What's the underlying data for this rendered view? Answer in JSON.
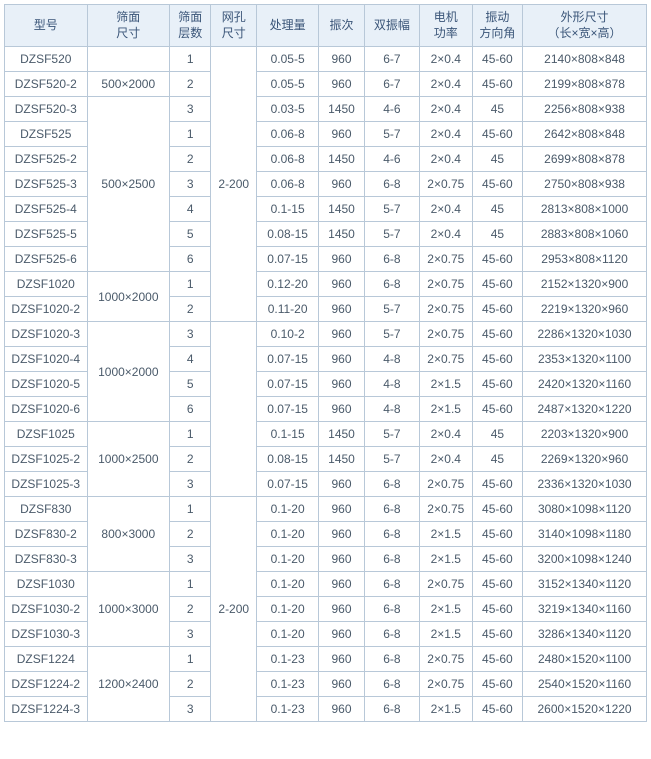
{
  "headers": [
    "型号",
    "筛面\n尺寸",
    "筛面\n层数",
    "网孔\n尺寸",
    "处理量",
    "振次",
    "双振幅",
    "电机\n功率",
    "振动\n方向角",
    "外形尺寸\n（长×宽×高）"
  ],
  "colClasses": [
    "c0",
    "c1",
    "c2",
    "c3",
    "c4",
    "c5",
    "c6",
    "c7",
    "c8",
    "c9"
  ],
  "rows": [
    {
      "c0": "DZSF520",
      "c1": null,
      "c2": "1",
      "c3": null,
      "c4": "0.05-5",
      "c5": "960",
      "c6": "6-7",
      "c7": "2×0.4",
      "c8": "45-60",
      "c9": "2140×808×848"
    },
    {
      "c0": "DZSF520-2",
      "c1": "500×2000",
      "c2": "2",
      "c3": null,
      "c4": "0.05-5",
      "c5": "960",
      "c6": "6-7",
      "c7": "2×0.4",
      "c8": "45-60",
      "c9": "2199×808×878"
    },
    {
      "c0": "DZSF520-3",
      "c1": null,
      "c2": "3",
      "c3": null,
      "c4": "0.03-5",
      "c5": "1450",
      "c6": "4-6",
      "c7": "2×0.4",
      "c8": "45",
      "c9": "2256×808×938"
    },
    {
      "c0": "DZSF525",
      "c1": null,
      "c2": "1",
      "c3": null,
      "c4": "0.06-8",
      "c5": "960",
      "c6": "5-7",
      "c7": "2×0.4",
      "c8": "45-60",
      "c9": "2642×808×848"
    },
    {
      "c0": "DZSF525-2",
      "c1": null,
      "c2": "2",
      "c3": null,
      "c4": "0.06-8",
      "c5": "1450",
      "c6": "4-6",
      "c7": "2×0.4",
      "c8": "45",
      "c9": "2699×808×878"
    },
    {
      "c0": "DZSF525-3",
      "c1": "500×2500",
      "c2": "3",
      "c3": "2-200",
      "c4": "0.06-8",
      "c5": "960",
      "c6": "6-8",
      "c7": "2×0.75",
      "c8": "45-60",
      "c9": "2750×808×938"
    },
    {
      "c0": "DZSF525-4",
      "c1": null,
      "c2": "4",
      "c3": null,
      "c4": "0.1-15",
      "c5": "1450",
      "c6": "5-7",
      "c7": "2×0.4",
      "c8": "45",
      "c9": "2813×808×1000"
    },
    {
      "c0": "DZSF525-5",
      "c1": null,
      "c2": "5",
      "c3": null,
      "c4": "0.08-15",
      "c5": "1450",
      "c6": "5-7",
      "c7": "2×0.4",
      "c8": "45",
      "c9": "2883×808×1060"
    },
    {
      "c0": "DZSF525-6",
      "c1": null,
      "c2": "6",
      "c3": null,
      "c4": "0.07-15",
      "c5": "960",
      "c6": "6-8",
      "c7": "2×0.75",
      "c8": "45-60",
      "c9": "2953×808×1120"
    },
    {
      "c0": "DZSF1020",
      "c1": "1000×2000",
      "c2": "1",
      "c3": null,
      "c4": "0.12-20",
      "c5": "960",
      "c6": "6-8",
      "c7": "2×0.75",
      "c8": "45-60",
      "c9": "2152×1320×900"
    },
    {
      "c0": "DZSF1020-2",
      "c1": null,
      "c2": "2",
      "c3": null,
      "c4": "0.11-20",
      "c5": "960",
      "c6": "5-7",
      "c7": "2×0.75",
      "c8": "45-60",
      "c9": "2219×1320×960"
    },
    {
      "c0": "DZSF1020-3",
      "c1": null,
      "c2": "3",
      "c3": null,
      "c4": "0.10-2",
      "c5": "960",
      "c6": "5-7",
      "c7": "2×0.75",
      "c8": "45-60",
      "c9": "2286×1320×1030"
    },
    {
      "c0": "DZSF1020-4",
      "c1": "1000×2000",
      "c2": "4",
      "c3": null,
      "c4": "0.07-15",
      "c5": "960",
      "c6": "4-8",
      "c7": "2×0.75",
      "c8": "45-60",
      "c9": "2353×1320×1100"
    },
    {
      "c0": "DZSF1020-5",
      "c1": null,
      "c2": "5",
      "c3": null,
      "c4": "0.07-15",
      "c5": "960",
      "c6": "4-8",
      "c7": "2×1.5",
      "c8": "45-60",
      "c9": "2420×1320×1160"
    },
    {
      "c0": "DZSF1020-6",
      "c1": null,
      "c2": "6",
      "c3": null,
      "c4": "0.07-15",
      "c5": "960",
      "c6": "4-8",
      "c7": "2×1.5",
      "c8": "45-60",
      "c9": "2487×1320×1220"
    },
    {
      "c0": "DZSF1025",
      "c1": null,
      "c2": "1",
      "c3": null,
      "c4": "0.1-15",
      "c5": "1450",
      "c6": "5-7",
      "c7": "2×0.4",
      "c8": "45",
      "c9": "2203×1320×900"
    },
    {
      "c0": "DZSF1025-2",
      "c1": "1000×2500",
      "c2": "2",
      "c3": null,
      "c4": "0.08-15",
      "c5": "1450",
      "c6": "5-7",
      "c7": "2×0.4",
      "c8": "45",
      "c9": "2269×1320×960"
    },
    {
      "c0": "DZSF1025-3",
      "c1": null,
      "c2": "3",
      "c3": null,
      "c4": "0.07-15",
      "c5": "960",
      "c6": "6-8",
      "c7": "2×0.75",
      "c8": "45-60",
      "c9": "2336×1320×1030"
    },
    {
      "c0": "DZSF830",
      "c1": null,
      "c2": "1",
      "c3": "2-200",
      "c4": "0.1-20",
      "c5": "960",
      "c6": "6-8",
      "c7": "2×0.75",
      "c8": "45-60",
      "c9": "3080×1098×1120"
    },
    {
      "c0": "DZSF830-2",
      "c1": "800×3000",
      "c2": "2",
      "c3": null,
      "c4": "0.1-20",
      "c5": "960",
      "c6": "6-8",
      "c7": "2×1.5",
      "c8": "45-60",
      "c9": "3140×1098×1180"
    },
    {
      "c0": "DZSF830-3",
      "c1": null,
      "c2": "3",
      "c3": null,
      "c4": "0.1-20",
      "c5": "960",
      "c6": "6-8",
      "c7": "2×1.5",
      "c8": "45-60",
      "c9": "3200×1098×1240"
    },
    {
      "c0": "DZSF1030",
      "c1": null,
      "c2": "1",
      "c3": null,
      "c4": "0.1-20",
      "c5": "960",
      "c6": "6-8",
      "c7": "2×0.75",
      "c8": "45-60",
      "c9": "3152×1340×1120"
    },
    {
      "c0": "DZSF1030-2",
      "c1": "1000×3000",
      "c2": "2",
      "c3": null,
      "c4": "0.1-20",
      "c5": "960",
      "c6": "6-8",
      "c7": "2×1.5",
      "c8": "45-60",
      "c9": "3219×1340×1160"
    },
    {
      "c0": "DZSF1030-3",
      "c1": null,
      "c2": "3",
      "c3": null,
      "c4": "0.1-20",
      "c5": "960",
      "c6": "6-8",
      "c7": "2×1.5",
      "c8": "45-60",
      "c9": "3286×1340×1120"
    },
    {
      "c0": "DZSF1224",
      "c1": null,
      "c2": "1",
      "c3": null,
      "c4": "0.1-23",
      "c5": "960",
      "c6": "6-8",
      "c7": "2×0.75",
      "c8": "45-60",
      "c9": "2480×1520×1100"
    },
    {
      "c0": "DZSF1224-2",
      "c1": "1200×2400",
      "c2": "2",
      "c3": null,
      "c4": "0.1-23",
      "c5": "960",
      "c6": "6-8",
      "c7": "2×0.75",
      "c8": "45-60",
      "c9": "2540×1520×1160"
    },
    {
      "c0": "DZSF1224-3",
      "c1": null,
      "c2": "3",
      "c3": null,
      "c4": "0.1-23",
      "c5": "960",
      "c6": "6-8",
      "c7": "2×1.5",
      "c8": "45-60",
      "c9": "2600×1520×1220"
    }
  ],
  "mergeC1": [
    {
      "start": 0,
      "span": 1
    },
    {
      "start": 1,
      "span": 1
    },
    {
      "start": 2,
      "span": 7
    },
    {
      "start": 9,
      "span": 2
    },
    {
      "start": 11,
      "span": 4
    },
    {
      "start": 15,
      "span": 3
    },
    {
      "start": 18,
      "span": 3
    },
    {
      "start": 21,
      "span": 3
    },
    {
      "start": 24,
      "span": 3
    }
  ],
  "mergeC3": [
    {
      "start": 0,
      "span": 11
    },
    {
      "start": 11,
      "span": 7
    },
    {
      "start": 18,
      "span": 9
    }
  ],
  "styles": {
    "header_bg": "#e8f0f8",
    "header_color": "#3a5578",
    "cell_color": "#4a5a6a",
    "border_color": "#b8c8d8",
    "font_size": 12
  }
}
